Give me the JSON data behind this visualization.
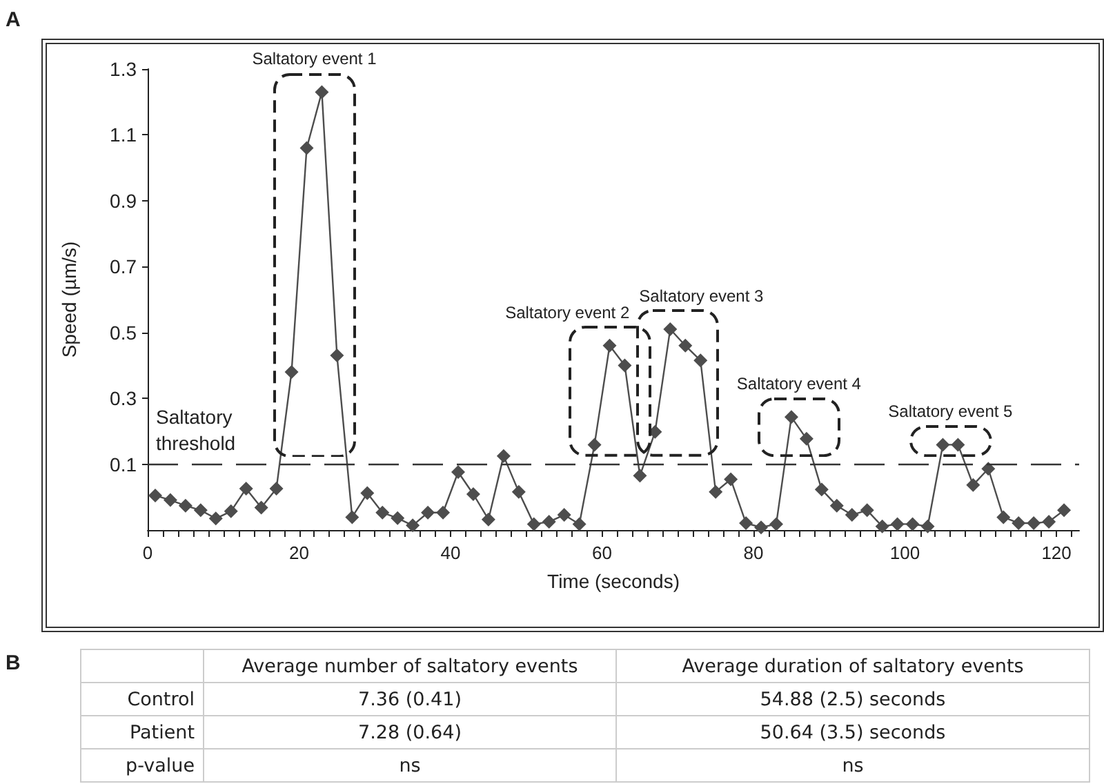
{
  "chart_data": [
    {
      "type": "line",
      "title": "A",
      "xlabel": "Time (seconds)",
      "ylabel": "Speed (µm/s)",
      "x": [
        1,
        3,
        5,
        7,
        9,
        11,
        13,
        15,
        17,
        19,
        21,
        23,
        25,
        27,
        29,
        31,
        33,
        35,
        37,
        39,
        41,
        43,
        45,
        47,
        49,
        51,
        53,
        55,
        57,
        59,
        61,
        63,
        65,
        67,
        69,
        71,
        73,
        75,
        77,
        79,
        81,
        83,
        85,
        87,
        89,
        91,
        93,
        95,
        97,
        99,
        101,
        103,
        105,
        107,
        109,
        111,
        113,
        115,
        117,
        119,
        121
      ],
      "series": [
        {
          "color": "#4d4d4d",
          "values": [
            0.005,
            -0.009,
            -0.026,
            -0.04,
            -0.065,
            -0.043,
            0.026,
            -0.032,
            0.026,
            0.38,
            1.06,
            1.23,
            0.43,
            -0.061,
            0.012,
            -0.047,
            -0.064,
            -0.086,
            -0.047,
            -0.047,
            0.076,
            0.009,
            -0.068,
            0.125,
            0.016,
            -0.082,
            -0.075,
            -0.054,
            -0.082,
            0.159,
            0.46,
            0.4,
            0.065,
            0.198,
            0.51,
            0.46,
            0.415,
            0.016,
            0.054,
            -0.079,
            -0.092,
            -0.082,
            0.243,
            0.177,
            0.023,
            -0.026,
            -0.054,
            -0.04,
            -0.089,
            -0.082,
            -0.082,
            -0.089,
            0.159,
            0.159,
            0.037,
            0.086,
            -0.061,
            -0.079,
            -0.079,
            -0.075,
            -0.04
          ]
        }
      ],
      "xlim": [
        0,
        123
      ],
      "xticks": [
        0,
        20,
        40,
        60,
        80,
        100,
        120
      ],
      "ylim": [
        -0.1,
        1.3
      ],
      "yticks": [
        0.1,
        0.3,
        0.5,
        0.7,
        0.9,
        1.1,
        1.3
      ],
      "marker": "diamond",
      "line_style": "solid",
      "grid": false,
      "ref_lines": [
        {
          "axis": "y",
          "value": 0.1,
          "label": "Saltatory threshold",
          "color": "#333333",
          "line_style": "dashed"
        }
      ],
      "annotations": [
        {
          "text": "Saltatory event 1",
          "x": 23,
          "y": 1.23
        },
        {
          "text": "Saltatory event 2",
          "x": 61,
          "y": 0.46
        },
        {
          "text": "Saltatory event 3",
          "x": 69,
          "y": 0.51
        },
        {
          "text": "Saltatory event 4",
          "x": 85,
          "y": 0.243
        },
        {
          "text": "Saltatory event 5",
          "x": 105,
          "y": 0.159
        }
      ]
    },
    {
      "type": "other",
      "title": "B",
      "categories": [
        null,
        "Average number of saltatory events",
        "Average duration of saltatory events"
      ],
      "y_categories": [
        "Control",
        "Patient",
        "p-value"
      ],
      "cell_labels": [
        [
          "7.36 (0.41)",
          "54.88 (2.5) seconds"
        ],
        [
          "7.28 (0.64)",
          "50.64 (3.5) seconds"
        ],
        [
          "ns",
          "ns"
        ]
      ]
    }
  ]
}
